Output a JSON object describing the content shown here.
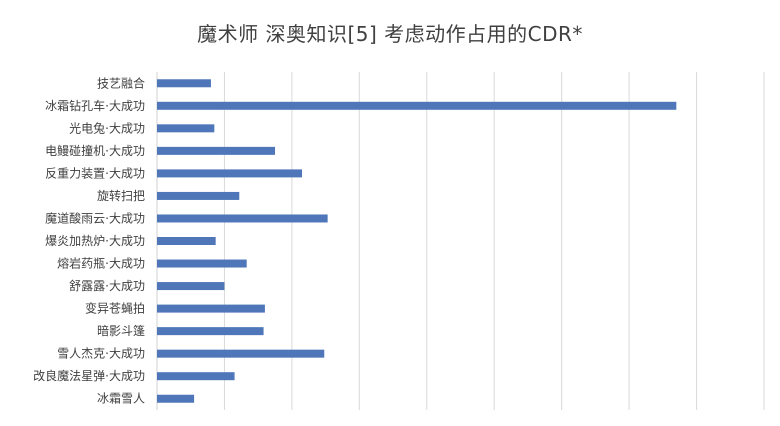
{
  "chart_data": {
    "type": "bar",
    "orientation": "horizontal",
    "title": "魔术师 深奥知识[5] 考虑动作占用的CDR*",
    "xlabel": "",
    "ylabel": "",
    "categories": [
      "技艺融合",
      "冰霜钻孔车·大成功",
      "光电兔·大成功",
      "电鳗碰撞机·大成功",
      "反重力装置·大成功",
      "旋转扫把",
      "魔道酸雨云·大成功",
      "爆炎加热炉·大成功",
      "熔岩药瓶·大成功",
      "舒露露·大成功",
      "变异苍蝇拍",
      "暗影斗篷",
      "雪人杰克·大成功",
      "改良魔法星弹·大成功",
      "冰霜雪人"
    ],
    "series": [
      {
        "values": [
          0.8,
          7.7,
          0.85,
          1.75,
          2.15,
          1.22,
          2.53,
          0.87,
          1.33,
          1.0,
          1.6,
          1.58,
          2.48,
          1.15,
          0.55
        ],
        "color": "#4F76B8"
      }
    ],
    "xlim": [
      0,
      9
    ],
    "grid": "vertical",
    "legend": "none",
    "bar_color": "#4F76B8",
    "grid_color": "#D9D9D9"
  }
}
